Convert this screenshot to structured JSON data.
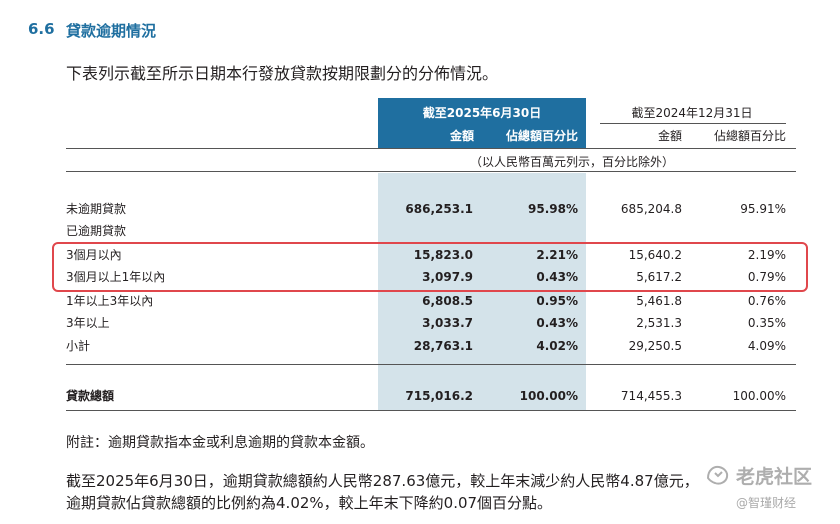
{
  "section": {
    "number": "6.6",
    "title": "貸款逾期情況"
  },
  "intro": "下表列示截至所示日期本行發放貸款按期限劃分的分佈情況。",
  "header": {
    "current": {
      "date": "截至2025年6月30日",
      "amount": "金額",
      "pct": "佔總額百分比"
    },
    "prior": {
      "date": "截至2024年12月31日",
      "amount": "金額",
      "pct": "佔總額百分比"
    },
    "unit_note": "（以人民幣百萬元列示，百分比除外）"
  },
  "rows": [
    {
      "label": "未逾期貸款",
      "c1": "686,253.1",
      "c2": "95.98%",
      "c3": "685,204.8",
      "c4": "95.91%"
    },
    {
      "label": "已逾期貸款",
      "c1": "",
      "c2": "",
      "c3": "",
      "c4": ""
    },
    {
      "label": "3個月以內",
      "c1": "15,823.0",
      "c2": "2.21%",
      "c3": "15,640.2",
      "c4": "2.19%"
    },
    {
      "label": "3個月以上1年以內",
      "c1": "3,097.9",
      "c2": "0.43%",
      "c3": "5,617.2",
      "c4": "0.79%"
    },
    {
      "label": "1年以上3年以內",
      "c1": "6,808.5",
      "c2": "0.95%",
      "c3": "5,461.8",
      "c4": "0.76%"
    },
    {
      "label": "3年以上",
      "c1": "3,033.7",
      "c2": "0.43%",
      "c3": "2,531.3",
      "c4": "0.35%"
    },
    {
      "label": "小計",
      "c1": "28,763.1",
      "c2": "4.02%",
      "c3": "29,250.5",
      "c4": "4.09%"
    }
  ],
  "total": {
    "label": "貸款總額",
    "c1": "715,016.2",
    "c2": "100.00%",
    "c3": "714,455.3",
    "c4": "100.00%"
  },
  "note": "附註：逾期貸款指本金或利息逾期的貸款本金額。",
  "paragraph": {
    "line1": "截至2025年6月30日，逾期貸款總額約人民幣287.63億元，較上年末減少約人民幣4.87億元，",
    "line2": "逾期貸款佔貸款總額的比例約為4.02%，較上年末下降約0.07個百分點。"
  },
  "watermark": {
    "main": "老虎社区",
    "sub": "@智瑾财经",
    "icon": "tiger-logo-icon"
  },
  "colors": {
    "accent": "#1f6fa0",
    "highlight": "#d4e3ea",
    "annotation": "#e0474c"
  }
}
